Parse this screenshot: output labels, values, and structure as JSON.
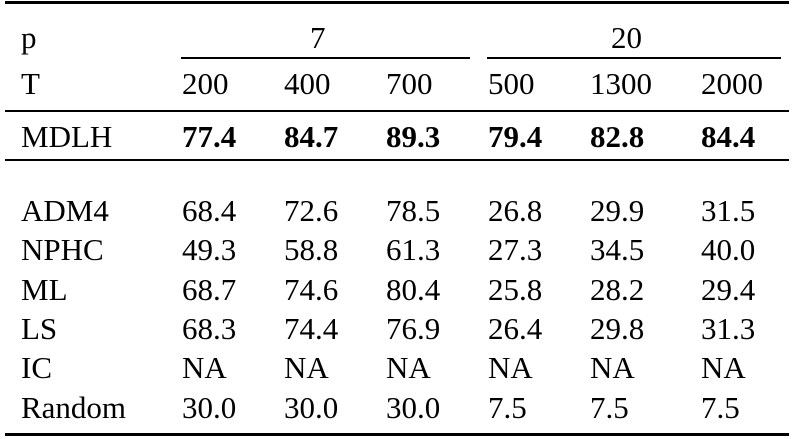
{
  "header": {
    "p_label": "p",
    "t_label": "T",
    "groups": [
      {
        "p": "7",
        "T": [
          "200",
          "400",
          "700"
        ]
      },
      {
        "p": "20",
        "T": [
          "500",
          "1300",
          "2000"
        ]
      }
    ]
  },
  "highlight_row": {
    "method": "MDLH",
    "values": [
      "77.4",
      "84.7",
      "89.3",
      "79.4",
      "82.8",
      "84.4"
    ]
  },
  "rows": [
    {
      "method": "ADM4",
      "values": [
        "68.4",
        "72.6",
        "78.5",
        "26.8",
        "29.9",
        "31.5"
      ]
    },
    {
      "method": "NPHC",
      "values": [
        "49.3",
        "58.8",
        "61.3",
        "27.3",
        "34.5",
        "40.0"
      ]
    },
    {
      "method": "ML",
      "values": [
        "68.7",
        "74.6",
        "80.4",
        "25.8",
        "28.2",
        "29.4"
      ]
    },
    {
      "method": "LS",
      "values": [
        "68.3",
        "74.4",
        "76.9",
        "26.4",
        "29.8",
        "31.3"
      ]
    },
    {
      "method": "IC",
      "values": [
        "NA",
        "NA",
        "NA",
        "NA",
        "NA",
        "NA"
      ]
    },
    {
      "method": "Random",
      "values": [
        "30.0",
        "30.0",
        "30.0",
        "7.5",
        "7.5",
        "7.5"
      ]
    }
  ]
}
